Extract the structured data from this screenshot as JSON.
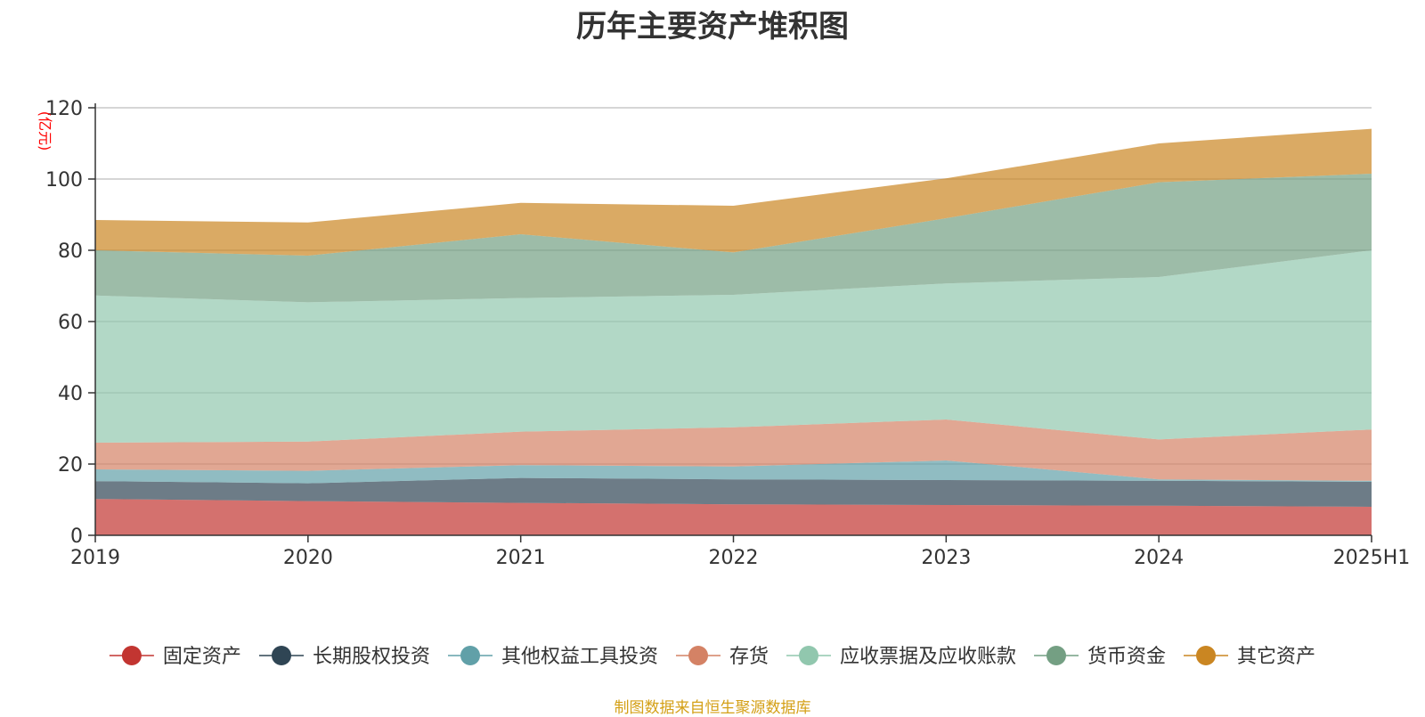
{
  "chart_data": {
    "type": "area",
    "stacked": true,
    "title": "历年主要资产堆积图",
    "unit": "(亿元)",
    "x": [
      "2019",
      "2020",
      "2021",
      "2022",
      "2023",
      "2024",
      "2025H1"
    ],
    "ylim": [
      0,
      120
    ],
    "yticks": [
      0,
      20,
      40,
      60,
      80,
      100,
      120
    ],
    "grid": true,
    "legend_position": "bottom",
    "series": [
      {
        "name": "固定资产",
        "color": "#c23531",
        "values": [
          10.2,
          9.6,
          9.1,
          8.7,
          8.5,
          8.3,
          8.0
        ]
      },
      {
        "name": "长期股权投资",
        "color": "#2f4554",
        "values": [
          5.0,
          5.0,
          7.0,
          7.0,
          7.0,
          7.0,
          7.0
        ]
      },
      {
        "name": "其他权益工具投资",
        "color": "#61a0a8",
        "values": [
          3.3,
          3.5,
          3.6,
          3.6,
          5.5,
          0.4,
          0.3
        ]
      },
      {
        "name": "存货",
        "color": "#d48265",
        "values": [
          7.5,
          8.2,
          9.4,
          11.0,
          11.5,
          11.2,
          14.4
        ]
      },
      {
        "name": "应收票据及应收账款",
        "color": "#91c7ae",
        "values": [
          41.3,
          39.1,
          37.5,
          37.2,
          38.2,
          45.6,
          50.3
        ]
      },
      {
        "name": "货币资金",
        "color": "#749f83",
        "values": [
          12.7,
          13.1,
          17.9,
          11.9,
          18.3,
          26.6,
          21.5
        ]
      },
      {
        "name": "其它资产",
        "color": "#ca8622",
        "values": [
          8.5,
          9.3,
          8.8,
          13.1,
          11.2,
          10.9,
          12.6
        ]
      }
    ]
  },
  "footer": {
    "source": "制图数据来自恒生聚源数据库"
  }
}
